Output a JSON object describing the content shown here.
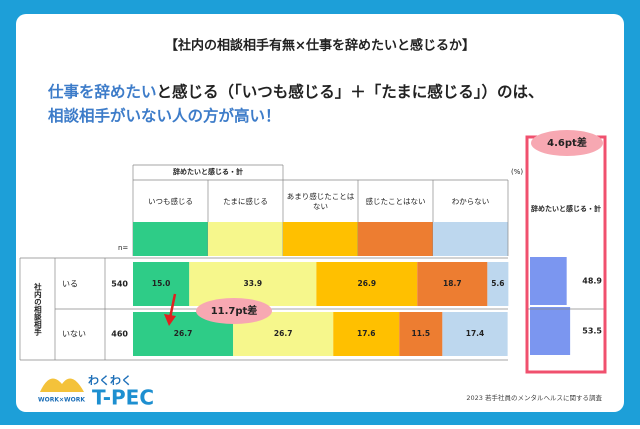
{
  "title": "【社内の相談相手有無×仕事を辞めたいと感じるか】",
  "headline": [
    [
      {
        "text": "仕事を辞めたい",
        "color": "#3d7cc9"
      },
      {
        "text": "と感じる（「いつも感じる」＋「たまに感じる」）のは、",
        "color": "#222222"
      }
    ],
    [
      {
        "text": "相談相手がいない人の方が高い！",
        "color": "#3d7cc9"
      }
    ]
  ],
  "chart_data": {
    "type": "stacked-bar",
    "group_header": "辞めたいと感じる・計",
    "unit": "(%)",
    "n_label": "n=",
    "row_group": "社内の相談相手",
    "categories": [
      "いる",
      "いない"
    ],
    "n": [
      540,
      460
    ],
    "xlim": [
      0,
      100
    ],
    "series": [
      {
        "name": "いつも感じる",
        "color": "#2ecc87",
        "values": [
          15.0,
          26.7
        ],
        "value_labels": [
          "15.0",
          "26.7"
        ]
      },
      {
        "name": "たまに感じる",
        "color": "#f6f78c",
        "values": [
          33.9,
          26.7
        ],
        "value_labels": [
          "33.9",
          "26.7"
        ]
      },
      {
        "name": "あまり感じたことはない",
        "color": "#ffc000",
        "values": [
          26.9,
          17.6
        ],
        "value_labels": [
          "26.9",
          "17.6"
        ]
      },
      {
        "name": "感じたことはない",
        "color": "#ed7d31",
        "values": [
          18.7,
          11.5
        ],
        "value_labels": [
          "18.7",
          "11.5"
        ]
      },
      {
        "name": "わからない",
        "color": "#bdd7ee",
        "values": [
          5.6,
          17.4
        ],
        "value_labels": [
          "5.6",
          "17.4"
        ]
      }
    ],
    "total": {
      "title": "辞めたいと感じる・計",
      "color": "#7b96f0",
      "values": [
        48.9,
        53.5
      ]
    },
    "annotations": [
      "4.6pt差",
      "11.7pt差"
    ]
  },
  "footer": "2023 若手社員のメンタルヘルスに関する調査",
  "logo": {
    "name": "わくわく",
    "tag": "WORK×WORK",
    "brand": "T-PEC"
  }
}
